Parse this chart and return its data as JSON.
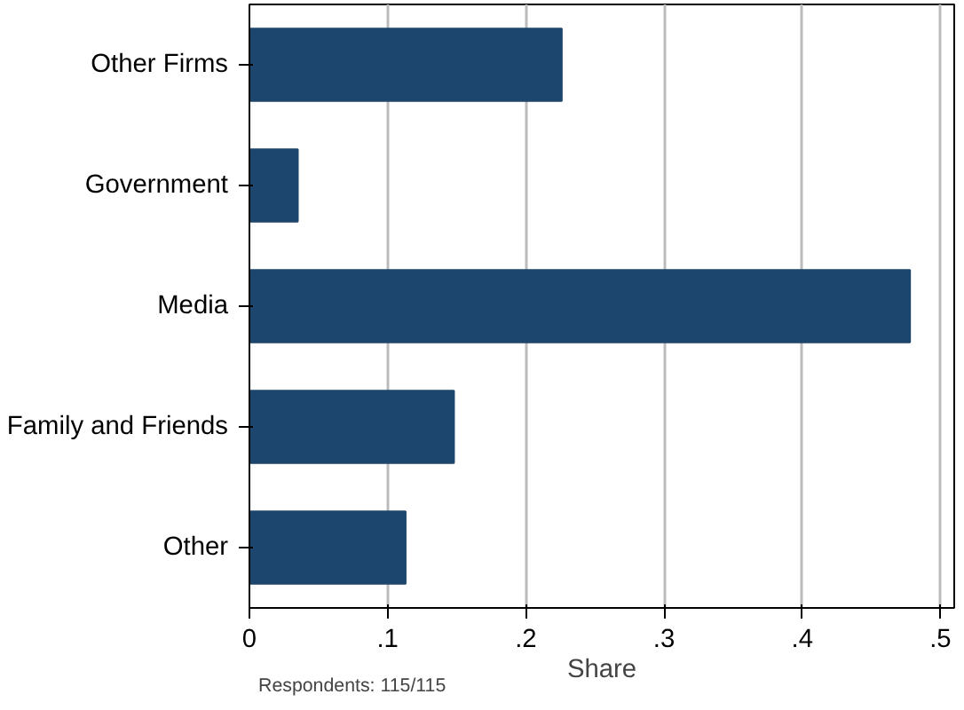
{
  "chart_data": {
    "type": "bar",
    "orientation": "horizontal",
    "categories": [
      "Other Firms",
      "Government",
      "Media",
      "Family and Friends",
      "Other"
    ],
    "values": [
      0.226,
      0.035,
      0.478,
      0.148,
      0.113
    ],
    "color": "#1c466d",
    "xlabel": "Share",
    "xlim": [
      0,
      0.51
    ],
    "xticks": [
      {
        "value": 0,
        "label": "0"
      },
      {
        "value": 0.1,
        "label": ".1"
      },
      {
        "value": 0.2,
        "label": ".2"
      },
      {
        "value": 0.3,
        "label": ".3"
      },
      {
        "value": 0.4,
        "label": ".4"
      },
      {
        "value": 0.5,
        "label": ".5"
      }
    ],
    "grid": "x",
    "annotations": [
      "Respondents: 115/115"
    ]
  }
}
